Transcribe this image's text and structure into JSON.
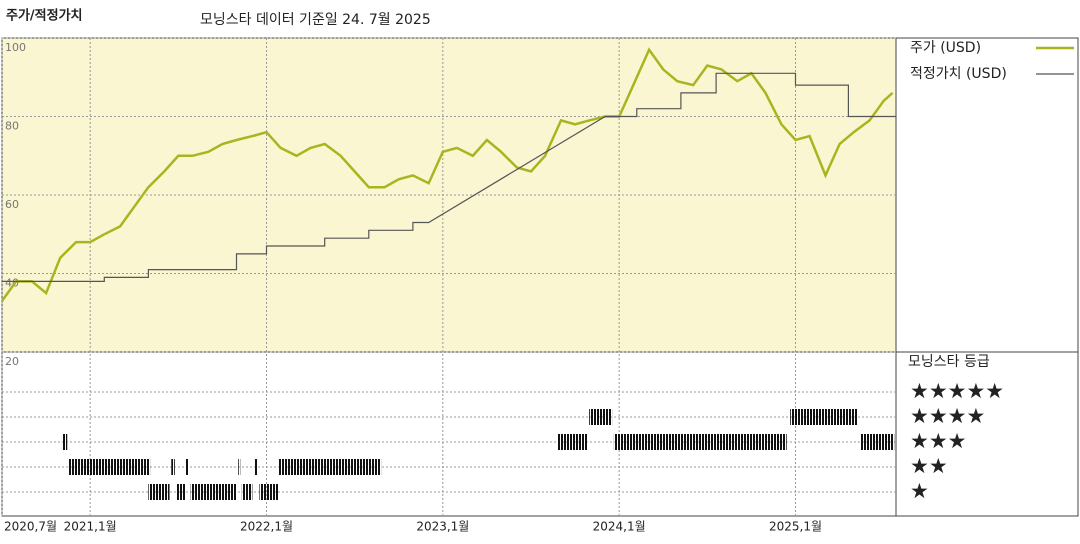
{
  "chart_data": {
    "type": "line",
    "title": "주가/적정가치",
    "subtitle": "모닝스타 데이터 기준일 24. 7월 2025",
    "xlim": [
      2020.5,
      2025.57
    ],
    "xticks": [
      {
        "value": 2020.5,
        "label": "2020,7월"
      },
      {
        "value": 2021,
        "label": "2021,1월"
      },
      {
        "value": 2022,
        "label": "2022,1월"
      },
      {
        "value": 2023,
        "label": "2023,1월"
      },
      {
        "value": 2024,
        "label": "2024,1월"
      },
      {
        "value": 2025,
        "label": "2025,1월"
      }
    ],
    "ylim": [
      20,
      100
    ],
    "yticks": [
      20,
      40,
      60,
      80,
      100
    ],
    "grid": true,
    "series": [
      {
        "name": "주가 (USD)",
        "color": "#a9b51f",
        "x": [
          2020.5,
          2020.58,
          2020.67,
          2020.75,
          2020.83,
          2020.92,
          2021.0,
          2021.08,
          2021.17,
          2021.25,
          2021.33,
          2021.42,
          2021.5,
          2021.58,
          2021.67,
          2021.75,
          2021.83,
          2021.92,
          2022.0,
          2022.08,
          2022.17,
          2022.25,
          2022.33,
          2022.42,
          2022.5,
          2022.58,
          2022.67,
          2022.75,
          2022.83,
          2022.92,
          2023.0,
          2023.08,
          2023.17,
          2023.25,
          2023.33,
          2023.42,
          2023.5,
          2023.58,
          2023.67,
          2023.75,
          2023.83,
          2023.92,
          2024.0,
          2024.08,
          2024.17,
          2024.25,
          2024.33,
          2024.42,
          2024.5,
          2024.58,
          2024.67,
          2024.75,
          2024.83,
          2024.92,
          2025.0,
          2025.08,
          2025.17,
          2025.25,
          2025.33,
          2025.42,
          2025.5,
          2025.55
        ],
        "values": [
          33,
          38,
          38,
          35,
          44,
          48,
          48,
          50,
          52,
          57,
          62,
          66,
          70,
          70,
          71,
          73,
          74,
          75,
          76,
          72,
          70,
          72,
          73,
          70,
          66,
          62,
          62,
          64,
          65,
          63,
          71,
          72,
          70,
          74,
          71,
          67,
          66,
          70,
          79,
          78,
          79,
          80,
          80,
          88,
          97,
          92,
          89,
          88,
          93,
          92,
          89,
          91,
          86,
          78,
          74,
          75,
          65,
          73,
          76,
          79,
          84,
          86
        ]
      },
      {
        "name": "적정가치 (USD)",
        "color": "#555555",
        "x": [
          2020.5,
          2021.08,
          2021.08,
          2021.33,
          2021.33,
          2021.83,
          2021.83,
          2022.0,
          2022.0,
          2022.33,
          2022.33,
          2022.58,
          2022.58,
          2022.83,
          2022.83,
          2022.92,
          2023.92,
          2024.1,
          2024.1,
          2024.35,
          2024.35,
          2024.55,
          2024.55,
          2025.0,
          2025.0,
          2025.3,
          2025.3,
          2025.57
        ],
        "values": [
          38,
          38,
          39,
          39,
          41,
          41,
          45,
          45,
          47,
          47,
          49,
          49,
          51,
          51,
          53,
          53,
          80,
          80,
          82,
          82,
          86,
          86,
          91,
          91,
          88,
          88,
          80,
          80
        ]
      }
    ],
    "rating_title": "모닝스타 등급",
    "star_labels": [
      "★★★★★",
      "★★★★",
      "★★★",
      "★★",
      "★"
    ],
    "star_levels": [
      5,
      4,
      3,
      2,
      1
    ],
    "ratings": [
      {
        "start": 2020.84,
        "end": 2020.87,
        "stars": 3
      },
      {
        "start": 2020.88,
        "end": 2021.34,
        "stars": 2
      },
      {
        "start": 2021.33,
        "end": 2021.45,
        "stars": 1
      },
      {
        "start": 2021.46,
        "end": 2021.48,
        "stars": 2
      },
      {
        "start": 2021.49,
        "end": 2021.54,
        "stars": 1
      },
      {
        "start": 2021.54,
        "end": 2021.56,
        "stars": 2
      },
      {
        "start": 2021.57,
        "end": 2021.83,
        "stars": 1
      },
      {
        "start": 2021.84,
        "end": 2021.85,
        "stars": 2
      },
      {
        "start": 2021.86,
        "end": 2021.92,
        "stars": 1
      },
      {
        "start": 2021.93,
        "end": 2021.95,
        "stars": 2
      },
      {
        "start": 2021.96,
        "end": 2022.07,
        "stars": 1
      },
      {
        "start": 2022.07,
        "end": 2022.65,
        "stars": 2
      },
      {
        "start": 2023.65,
        "end": 2023.82,
        "stars": 3
      },
      {
        "start": 2023.83,
        "end": 2023.96,
        "stars": 4
      },
      {
        "start": 2023.97,
        "end": 2024.95,
        "stars": 3
      },
      {
        "start": 2024.97,
        "end": 2025.35,
        "stars": 4
      },
      {
        "start": 2025.37,
        "end": 2025.56,
        "stars": 3
      }
    ]
  }
}
